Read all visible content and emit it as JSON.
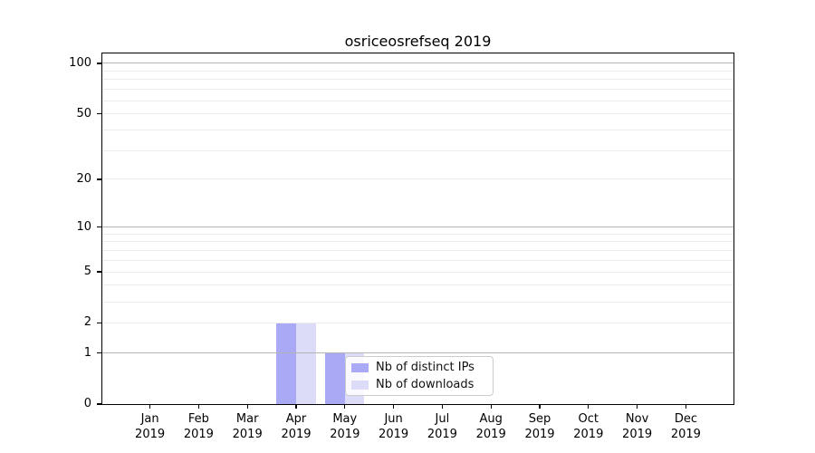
{
  "chart_data": {
    "type": "bar",
    "title": "osriceosrefseq 2019",
    "categories": [
      "Jan 2019",
      "Feb 2019",
      "Mar 2019",
      "Apr 2019",
      "May 2019",
      "Jun 2019",
      "Jul 2019",
      "Aug 2019",
      "Sep 2019",
      "Oct 2019",
      "Nov 2019",
      "Dec 2019"
    ],
    "x_tick_months": [
      "Jan",
      "Feb",
      "Mar",
      "Apr",
      "May",
      "Jun",
      "Jul",
      "Aug",
      "Sep",
      "Oct",
      "Nov",
      "Dec"
    ],
    "x_tick_year": "2019",
    "series": [
      {
        "name": "Nb of distinct IPs",
        "color": "#a9a9f5",
        "values": [
          0,
          0,
          0,
          2,
          1,
          0,
          0,
          0,
          0,
          0,
          0,
          0
        ]
      },
      {
        "name": "Nb of downloads",
        "color": "#dcdcf9",
        "values": [
          0,
          0,
          0,
          2,
          1,
          0,
          0,
          0,
          0,
          0,
          0,
          0
        ]
      }
    ],
    "yscale": "log1p",
    "ylim": [
      0,
      114.6
    ],
    "y_ticks": [
      0,
      1,
      2,
      5,
      10,
      20,
      50,
      100
    ],
    "grid": {
      "major": [
        1,
        10,
        100
      ],
      "minor": [
        2,
        3,
        4,
        5,
        6,
        7,
        8,
        9,
        20,
        30,
        40,
        50,
        60,
        70,
        80,
        90
      ],
      "major_color": "#b4b4b4",
      "minor_color": "#ececec"
    },
    "legend_position": "lower center (inside plot)",
    "xlabel": "",
    "ylabel": ""
  }
}
